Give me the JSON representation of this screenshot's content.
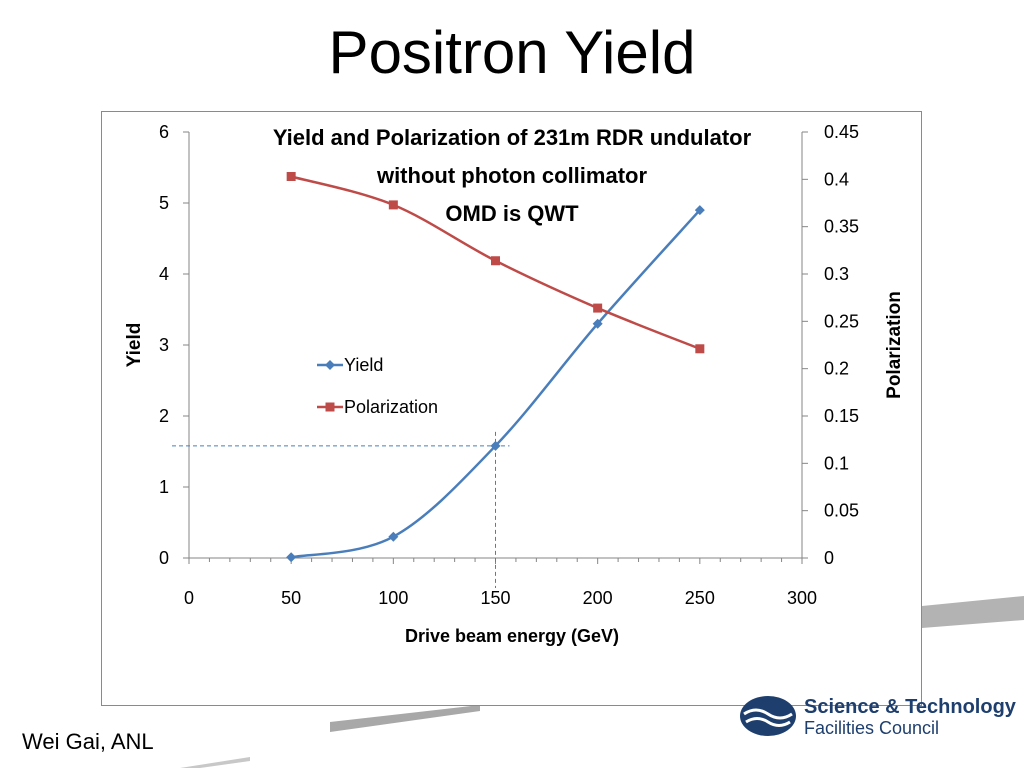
{
  "slide": {
    "title": "Positron Yield",
    "author": "Wei Gai, ANL",
    "logo": {
      "line1": "Science & Technology",
      "line2": "Facilities Council"
    }
  },
  "chart_data": {
    "type": "line",
    "title_lines": [
      "Yield and Polarization of 231m RDR undulator",
      "without photon collimator",
      "OMD is QWT"
    ],
    "xlabel": "Drive beam energy (GeV)",
    "ylabel": "Yield",
    "y2label": "Polarization",
    "xlim": [
      0,
      300
    ],
    "ylim": [
      0,
      6
    ],
    "y2lim": [
      0,
      0.45
    ],
    "x_ticks": [
      "0",
      "50",
      "100",
      "150",
      "200",
      "250",
      "300"
    ],
    "y_ticks": [
      "0",
      "1",
      "2",
      "3",
      "4",
      "5",
      "6"
    ],
    "y2_ticks": [
      "0",
      "0.05",
      "0.1",
      "0.15",
      "0.2",
      "0.25",
      "0.3",
      "0.35",
      "0.4",
      "0.45"
    ],
    "grid": false,
    "legend_position": "center-left",
    "x": [
      50,
      100,
      150,
      200,
      250
    ],
    "series": [
      {
        "name": "Yield",
        "axis": "left",
        "marker": "diamond",
        "color": "#4a7ebb",
        "values": [
          0.01,
          0.3,
          1.58,
          3.3,
          4.9
        ]
      },
      {
        "name": "Polarization",
        "axis": "right",
        "marker": "square",
        "color": "#be4b48",
        "values": [
          0.403,
          0.373,
          0.314,
          0.264,
          0.221
        ]
      }
    ],
    "annotation": {
      "type": "dashed-crosshair",
      "x": 150,
      "y": 1.58,
      "color": "#4a7ebb"
    }
  }
}
